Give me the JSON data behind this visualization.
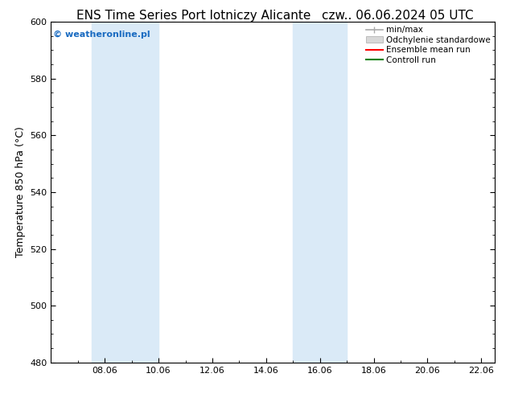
{
  "title_left": "ENS Time Series Port lotniczy Alicante",
  "title_right": "czw.. 06.06.2024 05 UTC",
  "ylabel": "Temperature 850 hPa (°C)",
  "ylim": [
    480,
    600
  ],
  "yticks": [
    480,
    500,
    520,
    540,
    560,
    580,
    600
  ],
  "xlim_start": 6.0,
  "xlim_end": 22.5,
  "xtick_positions": [
    8.0,
    10.0,
    12.0,
    14.0,
    16.0,
    18.0,
    20.0,
    22.0
  ],
  "xtick_labels": [
    "08.06",
    "10.06",
    "12.06",
    "14.06",
    "16.06",
    "18.06",
    "20.06",
    "22.06"
  ],
  "shaded_bands": [
    {
      "xmin": 7.5,
      "xmax": 10.0
    },
    {
      "xmin": 15.0,
      "xmax": 17.0
    }
  ],
  "shade_color": "#daeaf7",
  "background_color": "#ffffff",
  "watermark_text": "© weatheronline.pl",
  "watermark_color": "#1a6bc1",
  "legend_entries": [
    {
      "label": "min/max",
      "color": "#aaaaaa",
      "lw": 1.2,
      "style": "minmax"
    },
    {
      "label": "Odchylenie standardowe",
      "color": "#d8d8d8",
      "lw": 6,
      "style": "band"
    },
    {
      "label": "Ensemble mean run",
      "color": "#ff0000",
      "lw": 1.5,
      "style": "line"
    },
    {
      "label": "Controll run",
      "color": "#008000",
      "lw": 1.5,
      "style": "line"
    }
  ],
  "title_fontsize": 11,
  "axis_label_fontsize": 9,
  "tick_fontsize": 8,
  "legend_fontsize": 7.5
}
